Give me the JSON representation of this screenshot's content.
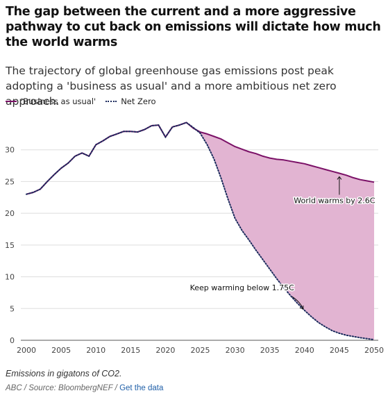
{
  "title": "The gap between the current and a more aggressive pathway to cut back on emissions will dictate how much the world warms",
  "subtitle": "The trajectory of global greenhouse gas emissions post peak adopting a 'business as usual' and a more ambitious net zero approach.",
  "footnote": "Emissions in gigatons of CO2.",
  "source": {
    "prefix": "ABC / Source: BloombergNEF / ",
    "link_label": "Get the data"
  },
  "colors": {
    "business_as_usual": "#7b1167",
    "net_zero": "#1a2a5c",
    "gap_fill": "#e2b4d2"
  },
  "chart_data": {
    "type": "line",
    "title": "",
    "xlabel": "",
    "ylabel": "",
    "xlim": [
      2000,
      2050
    ],
    "ylim": [
      0,
      35
    ],
    "x_ticks": [
      2000,
      2005,
      2010,
      2015,
      2020,
      2025,
      2030,
      2035,
      2040,
      2045,
      2050
    ],
    "y_ticks": [
      0,
      5,
      10,
      15,
      20,
      25,
      30
    ],
    "grid": "horizontal",
    "legend_position": "top-left",
    "series": [
      {
        "name": "'Business as usual'",
        "style": "solid",
        "x": [
          2000,
          2001,
          2002,
          2003,
          2004,
          2005,
          2006,
          2007,
          2008,
          2009,
          2010,
          2011,
          2012,
          2013,
          2014,
          2015,
          2016,
          2017,
          2018,
          2019,
          2020,
          2021,
          2022,
          2023,
          2024,
          2025,
          2026,
          2027,
          2028,
          2029,
          2030,
          2031,
          2032,
          2033,
          2034,
          2035,
          2036,
          2037,
          2038,
          2039,
          2040,
          2041,
          2042,
          2043,
          2044,
          2045,
          2046,
          2047,
          2048,
          2049,
          2050
        ],
        "values": [
          23.0,
          23.3,
          23.8,
          25.0,
          26.1,
          27.1,
          27.9,
          29.0,
          29.5,
          29.0,
          30.8,
          31.4,
          32.1,
          32.5,
          32.9,
          32.9,
          32.8,
          33.2,
          33.8,
          33.9,
          32.0,
          33.6,
          33.9,
          34.3,
          33.4,
          32.8,
          32.5,
          32.1,
          31.7,
          31.1,
          30.5,
          30.1,
          29.7,
          29.4,
          29.0,
          28.7,
          28.5,
          28.4,
          28.2,
          28.0,
          27.8,
          27.5,
          27.2,
          26.9,
          26.6,
          26.3,
          26.0,
          25.6,
          25.3,
          25.1,
          24.9
        ]
      },
      {
        "name": "Net Zero",
        "style": "dotted",
        "x": [
          2000,
          2001,
          2002,
          2003,
          2004,
          2005,
          2006,
          2007,
          2008,
          2009,
          2010,
          2011,
          2012,
          2013,
          2014,
          2015,
          2016,
          2017,
          2018,
          2019,
          2020,
          2021,
          2022,
          2023,
          2024,
          2025,
          2026,
          2027,
          2028,
          2029,
          2030,
          2031,
          2032,
          2033,
          2034,
          2035,
          2036,
          2037,
          2038,
          2039,
          2040,
          2041,
          2042,
          2043,
          2044,
          2045,
          2046,
          2047,
          2048,
          2049,
          2050
        ],
        "values": [
          23.0,
          23.3,
          23.8,
          25.0,
          26.1,
          27.1,
          27.9,
          29.0,
          29.5,
          29.0,
          30.8,
          31.4,
          32.1,
          32.5,
          32.9,
          32.9,
          32.8,
          33.2,
          33.8,
          33.9,
          32.0,
          33.6,
          33.9,
          34.3,
          33.5,
          32.6,
          30.8,
          28.5,
          25.5,
          22.2,
          19.2,
          17.3,
          15.8,
          14.2,
          12.7,
          11.2,
          9.7,
          8.3,
          7.0,
          5.8,
          4.7,
          3.7,
          2.8,
          2.1,
          1.5,
          1.1,
          0.8,
          0.6,
          0.4,
          0.25,
          0.1
        ]
      }
    ],
    "annotations": [
      {
        "text": "World warms by 2.6C",
        "x": 2045,
        "y": 26.2,
        "label_x": 2044.3,
        "label_y": 21.6,
        "anchor": "middle"
      },
      {
        "text": "Keep warming below 1.75C",
        "x": 2040,
        "y": 4.7,
        "label_x": 2038.5,
        "label_y": 7.9,
        "anchor": "end"
      }
    ]
  }
}
